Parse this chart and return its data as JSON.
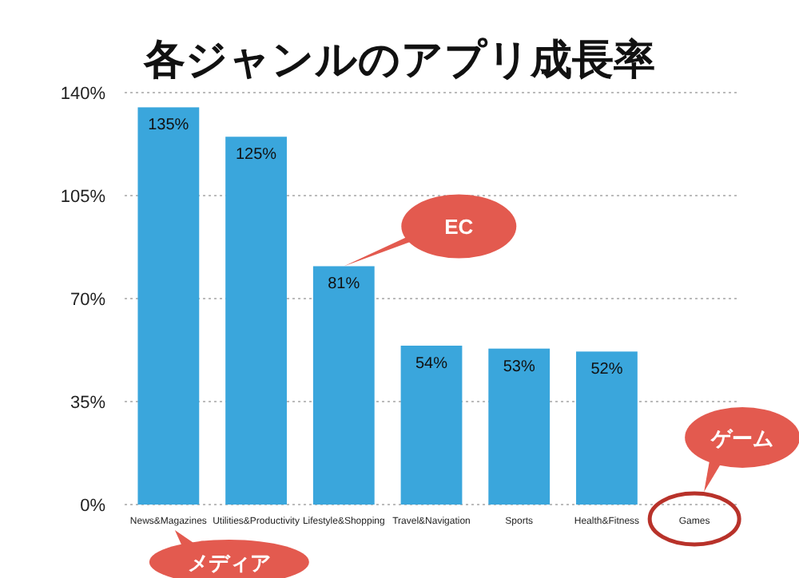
{
  "chart_data": {
    "type": "bar",
    "title": "各ジャンルのアプリ成長率",
    "categories": [
      "News&Magazines",
      "Utilities&Productivity",
      "Lifestyle&Shopping",
      "Travel&Navigation",
      "Sports",
      "Health&Fitness",
      "Games"
    ],
    "values": [
      135,
      125,
      81,
      54,
      53,
      52,
      null
    ],
    "color": "#3aa6dc",
    "value_labels": [
      "135%",
      "125%",
      "81%",
      "54%",
      "53%",
      "52%",
      null
    ],
    "ylim": [
      0,
      140
    ],
    "yticks": [
      {
        "value": 0,
        "label": "0%"
      },
      {
        "value": 35,
        "label": "35%"
      },
      {
        "value": 70,
        "label": "70%"
      },
      {
        "value": 105,
        "label": "105%"
      },
      {
        "value": 140,
        "label": "140%"
      }
    ],
    "grid": "y",
    "annotations": [
      {
        "text": "EC",
        "x": "Lifestyle&Shopping",
        "y": 81
      },
      "ゲーム",
      "メディア"
    ]
  }
}
